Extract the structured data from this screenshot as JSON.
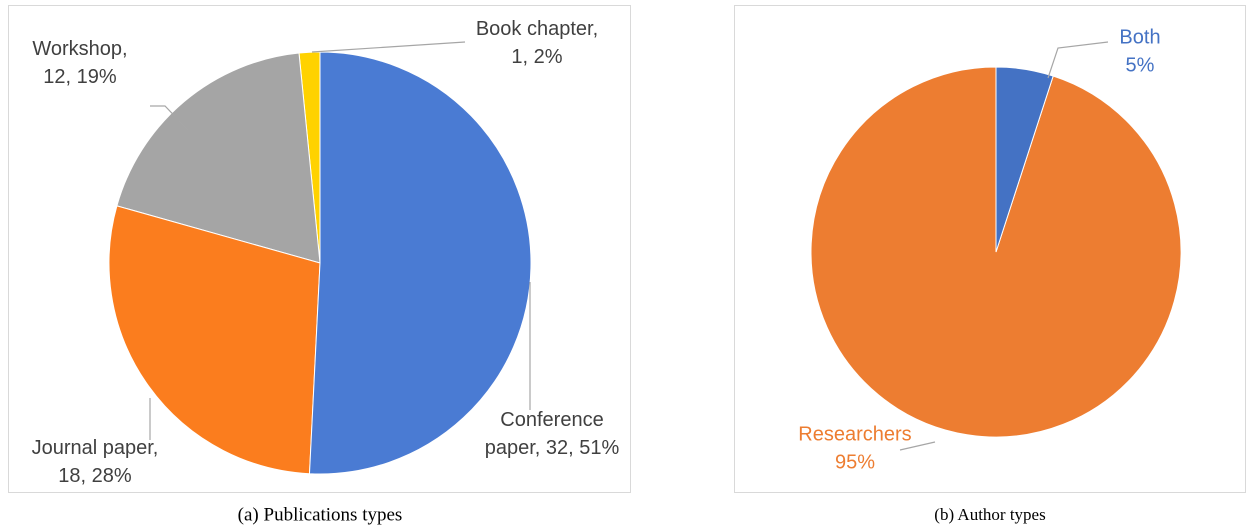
{
  "chart_data": [
    {
      "type": "pie",
      "caption": "(a) Publications types",
      "values": [
        32,
        18,
        12,
        1
      ],
      "value_labels": [
        "Conference paper, 32, 51%",
        "Journal paper, 18, 28%",
        "Workshop, 12, 19%",
        "Book chapter, 1, 2%"
      ],
      "colors": [
        "#4a7bd3",
        "#fb7d1e",
        "#a5a5a5",
        "#ffd200"
      ]
    },
    {
      "type": "pie",
      "caption": "(b) Author types",
      "categories": [
        "Both",
        "Researchers"
      ],
      "values": [
        5,
        95
      ],
      "value_labels": [
        "5%",
        "95%"
      ],
      "colors": [
        "#4472c4",
        "#ed7d31"
      ]
    }
  ]
}
